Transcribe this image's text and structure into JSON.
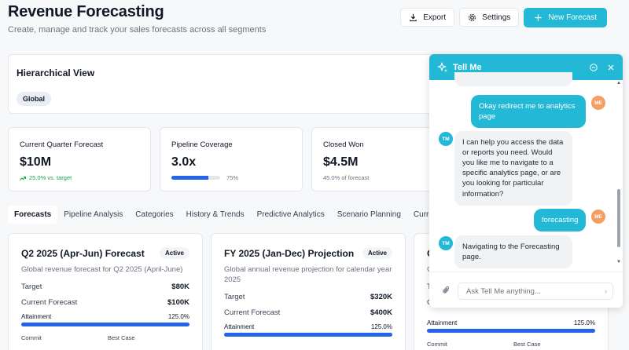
{
  "header": {
    "title": "Revenue Forecasting",
    "subtitle": "Create, manage and track your sales forecasts across all segments"
  },
  "actions": {
    "export": "Export",
    "settings": "Settings",
    "new_forecast": "New Forecast"
  },
  "hierarchy": {
    "title": "Hierarchical View",
    "chip": "Global"
  },
  "metrics": [
    {
      "label": "Current Quarter Forecast",
      "value": "$10M",
      "sub": "25.0% vs. target",
      "trend": "up"
    },
    {
      "label": "Pipeline Coverage",
      "value": "3.0x",
      "sub": "75%",
      "progress": 0.75
    },
    {
      "label": "Closed Won",
      "value": "$4.5M",
      "sub": "45.0% of forecast"
    }
  ],
  "tabs": [
    "Forecasts",
    "Pipeline Analysis",
    "Categories",
    "History & Trends",
    "Predictive Analytics",
    "Scenario Planning",
    "Current Quarte"
  ],
  "active_tab": "Forecasts",
  "forecast_cards": [
    {
      "title": "Q2 2025 (Apr-Jun) Forecast",
      "badge": "Active",
      "description": "Global revenue forecast for Q2 2025 (April-June)",
      "target_label": "Target",
      "target": "$80K",
      "current_label": "Current Forecast",
      "current": "$100K",
      "attainment_label": "Attainment",
      "attainment": "125.0%",
      "commit": "Commit",
      "best_case": "Best Case"
    },
    {
      "title": "FY 2025 (Jan-Dec) Projection",
      "badge": "Active",
      "description": "Global annual revenue projection for calendar year 2025",
      "target_label": "Target",
      "target": "$320K",
      "current_label": "Current Forecast",
      "current": "$400K",
      "attainment_label": "Attainment",
      "attainment": "125.0%"
    },
    {
      "title": "C",
      "description": "G",
      "target_label": "T",
      "current_label": "C",
      "attainment_label": "Attainment",
      "attainment": "125.0%",
      "commit": "Commit",
      "best_case": "Best Case"
    }
  ],
  "chat": {
    "title": "Tell Me",
    "messages": [
      {
        "from": "user",
        "avatar": "ME",
        "text": "Okay redirect me to analytics page"
      },
      {
        "from": "bot",
        "avatar": "TM",
        "text": "I can help you access the data or reports you need. Would you like me to navigate to a specific analytics page, or are you looking for particular information?"
      },
      {
        "from": "user",
        "avatar": "ME",
        "text": "forecasting"
      },
      {
        "from": "bot",
        "avatar": "TM",
        "text": "Navigating to the Forecasting page."
      }
    ],
    "input_placeholder": "Ask Tell Me anything..."
  },
  "colors": {
    "accent": "#22b8d6",
    "progress": "#2563eb",
    "positive": "#16a34a",
    "user_avatar": "#f59e62"
  }
}
